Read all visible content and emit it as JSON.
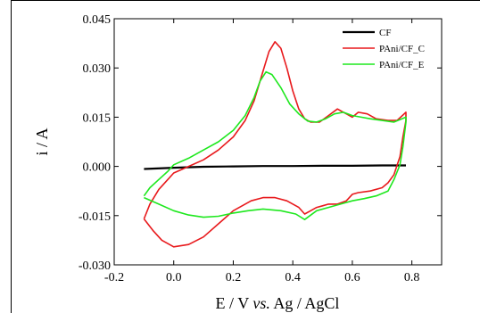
{
  "chart_data": {
    "type": "line",
    "xlabel": {
      "pre": "E / V ",
      "italic": "vs.",
      "post": " Ag / AgCl"
    },
    "ylabel": "i / A",
    "xlim": [
      -0.2,
      0.9
    ],
    "ylim": [
      -0.03,
      0.045
    ],
    "x_ticks": [
      -0.2,
      0.0,
      0.2,
      0.4,
      0.6,
      0.8
    ],
    "x_tick_labels": [
      "-0.2",
      "0.0",
      "0.2",
      "0.4",
      "0.6",
      "0.8"
    ],
    "y_ticks": [
      -0.03,
      -0.015,
      0.0,
      0.015,
      0.03,
      0.045
    ],
    "y_tick_labels": [
      "-0.030",
      "-0.015",
      "0.000",
      "0.015",
      "0.030",
      "0.045"
    ],
    "grid": false,
    "legend_position": "top-right",
    "series": [
      {
        "name": "CF",
        "color": "#000000",
        "points": [
          [
            -0.1,
            -0.0008
          ],
          [
            0.0,
            -0.0004
          ],
          [
            0.1,
            -0.0001
          ],
          [
            0.2,
            0.0
          ],
          [
            0.3,
            0.0001
          ],
          [
            0.4,
            0.0001
          ],
          [
            0.5,
            0.0002
          ],
          [
            0.6,
            0.0002
          ],
          [
            0.7,
            0.0003
          ],
          [
            0.78,
            0.0003
          ]
        ]
      },
      {
        "name": "PAni/CF_C",
        "color": "#e8191c",
        "points": [
          [
            -0.1,
            -0.016
          ],
          [
            -0.08,
            -0.0115
          ],
          [
            -0.05,
            -0.007
          ],
          [
            -0.02,
            -0.004
          ],
          [
            0.0,
            -0.002
          ],
          [
            0.05,
            0.0
          ],
          [
            0.1,
            0.002
          ],
          [
            0.15,
            0.005
          ],
          [
            0.2,
            0.009
          ],
          [
            0.24,
            0.014
          ],
          [
            0.27,
            0.02
          ],
          [
            0.3,
            0.029
          ],
          [
            0.32,
            0.035
          ],
          [
            0.34,
            0.038
          ],
          [
            0.36,
            0.036
          ],
          [
            0.38,
            0.03
          ],
          [
            0.4,
            0.023
          ],
          [
            0.42,
            0.0175
          ],
          [
            0.44,
            0.0145
          ],
          [
            0.46,
            0.0135
          ],
          [
            0.49,
            0.0135
          ],
          [
            0.52,
            0.0155
          ],
          [
            0.55,
            0.0175
          ],
          [
            0.58,
            0.016
          ],
          [
            0.6,
            0.015
          ],
          [
            0.62,
            0.0165
          ],
          [
            0.65,
            0.016
          ],
          [
            0.68,
            0.0145
          ],
          [
            0.72,
            0.014
          ],
          [
            0.75,
            0.014
          ],
          [
            0.78,
            0.0165
          ],
          [
            0.78,
            0.014
          ],
          [
            0.77,
            0.009
          ],
          [
            0.76,
            0.003
          ],
          [
            0.74,
            -0.0025
          ],
          [
            0.72,
            -0.005
          ],
          [
            0.7,
            -0.0065
          ],
          [
            0.66,
            -0.0075
          ],
          [
            0.62,
            -0.008
          ],
          [
            0.6,
            -0.0085
          ],
          [
            0.58,
            -0.0105
          ],
          [
            0.55,
            -0.0115
          ],
          [
            0.52,
            -0.0115
          ],
          [
            0.5,
            -0.012
          ],
          [
            0.48,
            -0.0125
          ],
          [
            0.46,
            -0.0135
          ],
          [
            0.44,
            -0.0145
          ],
          [
            0.42,
            -0.0125
          ],
          [
            0.38,
            -0.0105
          ],
          [
            0.34,
            -0.0095
          ],
          [
            0.3,
            -0.0095
          ],
          [
            0.26,
            -0.0105
          ],
          [
            0.2,
            -0.0135
          ],
          [
            0.15,
            -0.0175
          ],
          [
            0.1,
            -0.0215
          ],
          [
            0.05,
            -0.0238
          ],
          [
            0.0,
            -0.0245
          ],
          [
            -0.04,
            -0.0225
          ],
          [
            -0.07,
            -0.0195
          ],
          [
            -0.1,
            -0.016
          ]
        ]
      },
      {
        "name": "PAni/CF_E",
        "color": "#1ee81e",
        "points": [
          [
            -0.1,
            -0.009
          ],
          [
            -0.08,
            -0.0065
          ],
          [
            -0.05,
            -0.004
          ],
          [
            -0.02,
            -0.0015
          ],
          [
            0.0,
            0.0005
          ],
          [
            0.05,
            0.0025
          ],
          [
            0.1,
            0.005
          ],
          [
            0.15,
            0.0075
          ],
          [
            0.2,
            0.011
          ],
          [
            0.24,
            0.0155
          ],
          [
            0.27,
            0.021
          ],
          [
            0.29,
            0.026
          ],
          [
            0.31,
            0.0288
          ],
          [
            0.33,
            0.028
          ],
          [
            0.36,
            0.024
          ],
          [
            0.39,
            0.019
          ],
          [
            0.42,
            0.016
          ],
          [
            0.45,
            0.0138
          ],
          [
            0.48,
            0.0135
          ],
          [
            0.51,
            0.0145
          ],
          [
            0.54,
            0.016
          ],
          [
            0.57,
            0.0165
          ],
          [
            0.6,
            0.0155
          ],
          [
            0.63,
            0.015
          ],
          [
            0.66,
            0.0145
          ],
          [
            0.7,
            0.014
          ],
          [
            0.74,
            0.0135
          ],
          [
            0.78,
            0.015
          ],
          [
            0.78,
            0.0135
          ],
          [
            0.77,
            0.006
          ],
          [
            0.76,
            0.0005
          ],
          [
            0.74,
            -0.004
          ],
          [
            0.72,
            -0.0075
          ],
          [
            0.68,
            -0.009
          ],
          [
            0.64,
            -0.0098
          ],
          [
            0.6,
            -0.0105
          ],
          [
            0.56,
            -0.0115
          ],
          [
            0.52,
            -0.0125
          ],
          [
            0.48,
            -0.0135
          ],
          [
            0.44,
            -0.0162
          ],
          [
            0.41,
            -0.0145
          ],
          [
            0.36,
            -0.0135
          ],
          [
            0.3,
            -0.013
          ],
          [
            0.25,
            -0.0135
          ],
          [
            0.2,
            -0.0142
          ],
          [
            0.15,
            -0.0152
          ],
          [
            0.1,
            -0.0155
          ],
          [
            0.05,
            -0.0148
          ],
          [
            0.0,
            -0.0135
          ],
          [
            -0.05,
            -0.0115
          ],
          [
            -0.1,
            -0.0095
          ]
        ]
      }
    ]
  }
}
